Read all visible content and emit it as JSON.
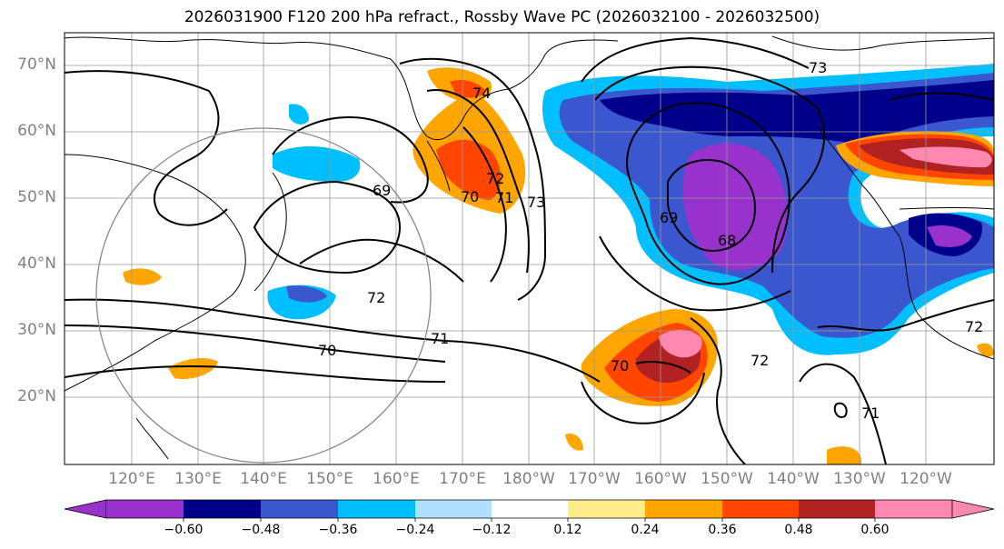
{
  "title": "2026031900 F120 200 hPa refract., Rossby Wave PC (2026032100 - 2026032500)",
  "lat_labels": [
    "70°N",
    "60°N",
    "50°N",
    "40°N",
    "30°N",
    "20°N"
  ],
  "lon_labels": [
    "120°E",
    "130°E",
    "140°E",
    "150°E",
    "160°E",
    "170°E",
    "180°W",
    "170°W",
    "160°W",
    "150°W",
    "140°W",
    "130°W",
    "120°W"
  ],
  "contour_labels": [
    "74",
    "73",
    "72",
    "71",
    "70",
    "69",
    "68",
    "69",
    "72",
    "71",
    "70",
    "71",
    "72",
    "73",
    "70",
    "72"
  ],
  "colorbar": {
    "tick_labels": [
      "−0.60",
      "−0.48",
      "−0.36",
      "−0.24",
      "−0.12",
      "0.12",
      "0.24",
      "0.36",
      "0.48",
      "0.60"
    ],
    "bin_colors": [
      "#9932cc",
      "#00008b",
      "#3a57cf",
      "#00bfff",
      "#b0e0ff",
      "#ffffff",
      "#ffec8b",
      "#ffa500",
      "#ff4500",
      "#b22222",
      "#ff88b0"
    ]
  },
  "colors": {
    "coast": "#000000",
    "contour": "#000000",
    "grid": "#999999",
    "circle": "#888888",
    "axis_text": "#808080"
  }
}
